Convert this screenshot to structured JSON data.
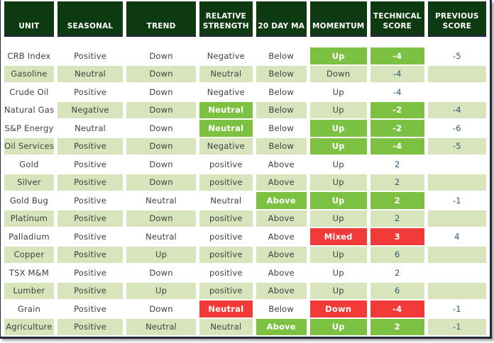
{
  "table": {
    "columns": [
      "UNIT",
      "SEASONAL",
      "TREND",
      "RELATIVE STRENGTH",
      "20 DAY MA",
      "MOMENTUM",
      "TECHNICAL SCORE",
      "PREVIOUS SCORE"
    ],
    "rows": [
      {
        "cells": [
          "CRB Index",
          "Positive",
          "Down",
          "Negative",
          "Below",
          "Up",
          "-4",
          "-5"
        ],
        "highlights": {
          "5": "green",
          "6": "green"
        }
      },
      {
        "cells": [
          "Gasoline",
          "Neutral",
          "Down",
          "Neutral",
          "Below",
          "Down",
          "-4",
          ""
        ],
        "highlights": {}
      },
      {
        "cells": [
          "Crude Oil",
          "Positive",
          "Down",
          "Negative",
          "Below",
          "Up",
          "-4",
          ""
        ],
        "highlights": {}
      },
      {
        "cells": [
          "Natural Gas",
          "Negative",
          "Down",
          "Neutral",
          "Below",
          "Up",
          "-2",
          "-4"
        ],
        "highlights": {
          "0": "white",
          "3": "green",
          "6": "green"
        }
      },
      {
        "cells": [
          "S&P Energy",
          "Neutral",
          "Down",
          "Neutral",
          "Below",
          "Up",
          "-2",
          "-6"
        ],
        "highlights": {
          "3": "green",
          "5": "green",
          "6": "green"
        }
      },
      {
        "cells": [
          "Oil Services",
          "Positive",
          "Down",
          "Negative",
          "Below",
          "Up",
          "-4",
          "-5"
        ],
        "highlights": {
          "5": "green",
          "6": "green"
        }
      },
      {
        "cells": [
          "Gold",
          "Positive",
          "Down",
          "positive",
          "Above",
          "Up",
          "2",
          ""
        ],
        "highlights": {}
      },
      {
        "cells": [
          "Silver",
          "Positive",
          "Down",
          "positive",
          "Above",
          "Up",
          "2",
          ""
        ],
        "highlights": {}
      },
      {
        "cells": [
          "Gold Bug",
          "Positive",
          "Neutral",
          "Neutral",
          "Above",
          "Up",
          "2",
          "-1"
        ],
        "highlights": {
          "4": "green",
          "5": "green",
          "6": "green"
        }
      },
      {
        "cells": [
          "Platinum",
          "Positive",
          "Down",
          "positive",
          "Above",
          "Up",
          "2",
          ""
        ],
        "highlights": {}
      },
      {
        "cells": [
          "Palladium",
          "Positive",
          "Neutral",
          "positive",
          "Above",
          "Mixed",
          "3",
          "4"
        ],
        "highlights": {
          "5": "red",
          "6": "red"
        }
      },
      {
        "cells": [
          "Copper",
          "Positive",
          "Up",
          "positive",
          "Above",
          "Up",
          "6",
          ""
        ],
        "highlights": {}
      },
      {
        "cells": [
          "TSX M&M",
          "Positive",
          "Down",
          "positive",
          "Above",
          "Up",
          "2",
          ""
        ],
        "highlights": {}
      },
      {
        "cells": [
          "Lumber",
          "Positive",
          "Up",
          "positive",
          "Above",
          "Up",
          "6",
          ""
        ],
        "highlights": {}
      },
      {
        "cells": [
          "Grain",
          "Positive",
          "Down",
          "Neutral",
          "Below",
          "Down",
          "-4",
          "-1"
        ],
        "highlights": {
          "3": "red",
          "5": "red",
          "6": "red"
        }
      },
      {
        "cells": [
          "Agriculture",
          "Positive",
          "Neutral",
          "Neutral",
          "Above",
          "Up",
          "2",
          "-1"
        ],
        "highlights": {
          "4": "green",
          "5": "green",
          "6": "green"
        }
      }
    ]
  },
  "colors": {
    "header_bg": "#0d3a10",
    "header_text": "#ffffff",
    "row_alt_bg": "#d8e4bc",
    "highlight_green": "#7cc142",
    "highlight_red": "#f23b38",
    "frame_border": "#232a38",
    "body_text": "#404040",
    "score_text": "#2e5a7d"
  }
}
